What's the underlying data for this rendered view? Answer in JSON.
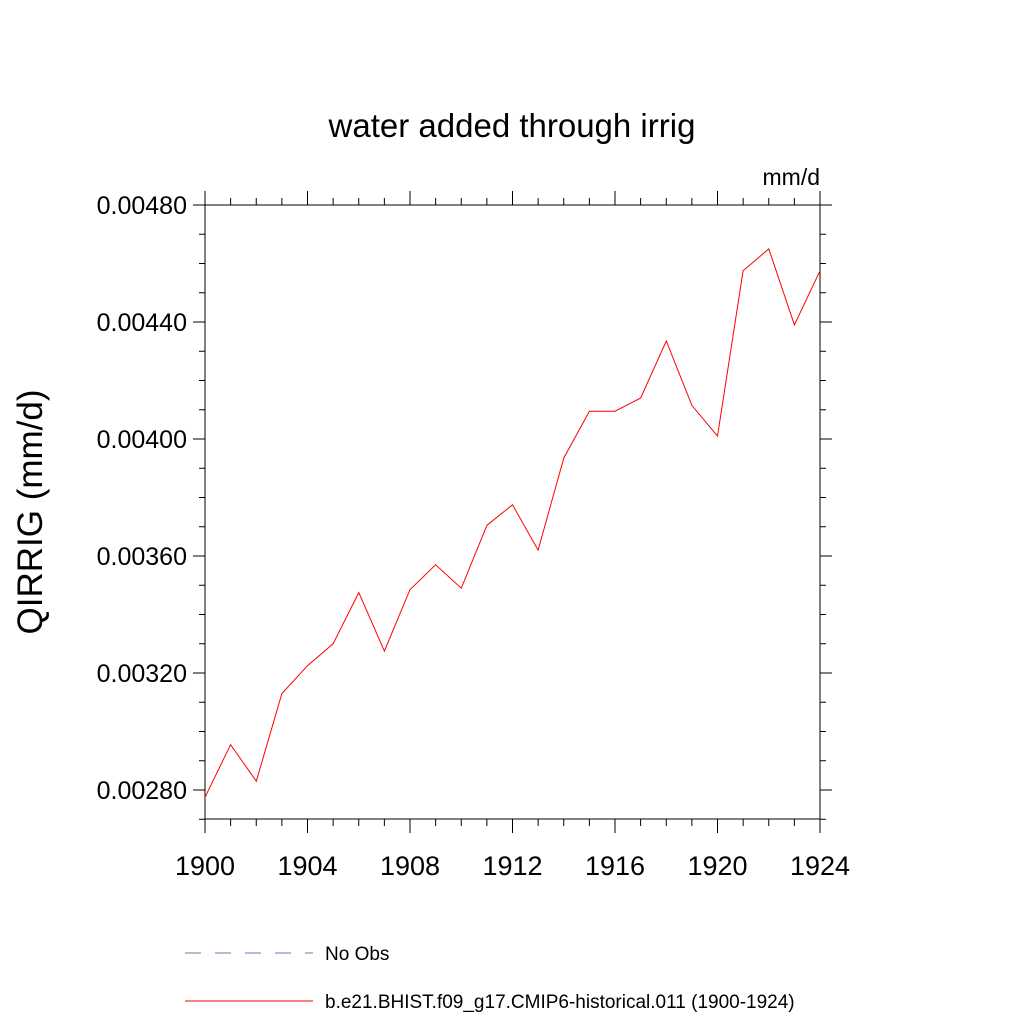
{
  "chart_data": {
    "type": "line",
    "title": "water added through irrig",
    "units": "mm/d",
    "ylabel": "QIRRIG  (mm/d)",
    "xlabel": "",
    "xlim": [
      1900,
      1924
    ],
    "ylim": [
      0.0027,
      0.00485
    ],
    "x_ticks": [
      1900,
      1904,
      1908,
      1912,
      1916,
      1920,
      1924
    ],
    "x_tick_labels": [
      "1900",
      "1904",
      "1908",
      "1912",
      "1916",
      "1920",
      "1924"
    ],
    "y_ticks": [
      0.0028,
      0.0032,
      0.0036,
      0.004,
      0.0044,
      0.0048
    ],
    "y_tick_labels": [
      "0.00280",
      "0.00320",
      "0.00360",
      "0.00400",
      "0.00440",
      "0.00480"
    ],
    "grid": false,
    "legend_position": "bottom",
    "series": [
      {
        "name": "b.e21.BHIST.f09_g17.CMIP6-historical.011 (1900-1924)",
        "color": "#ff0000",
        "style": "solid",
        "x": [
          1900,
          1901,
          1902,
          1903,
          1904,
          1905,
          1906,
          1907,
          1908,
          1909,
          1910,
          1911,
          1912,
          1913,
          1914,
          1915,
          1916,
          1917,
          1918,
          1919,
          1920,
          1921,
          1922,
          1923,
          1924
        ],
        "values": [
          0.002775,
          0.002955,
          0.00283,
          0.00313,
          0.003225,
          0.0033,
          0.003475,
          0.003275,
          0.003485,
          0.00357,
          0.00349,
          0.003705,
          0.003775,
          0.00362,
          0.003935,
          0.004095,
          0.004095,
          0.00414,
          0.004335,
          0.004115,
          0.00401,
          0.004575,
          0.00465,
          0.00439,
          0.004575
        ]
      },
      {
        "name": "No Obs",
        "color": "#7b6fb0",
        "style": "dashed",
        "x": [],
        "values": []
      }
    ]
  }
}
